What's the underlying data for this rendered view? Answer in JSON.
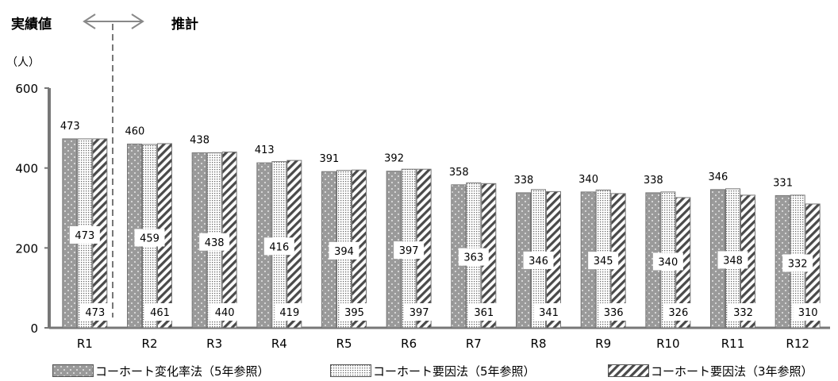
{
  "header": {
    "actual_label": "実績値",
    "forecast_label": "推計"
  },
  "chart_data": {
    "type": "bar",
    "unit_label": "（人）",
    "categories": [
      "R1",
      "R2",
      "R3",
      "R4",
      "R5",
      "R6",
      "R7",
      "R8",
      "R9",
      "R10",
      "R11",
      "R12"
    ],
    "ylim": [
      0,
      600
    ],
    "yticks": [
      0,
      200,
      400,
      600
    ],
    "grid": false,
    "legend_position": "bottom",
    "series": [
      {
        "name": "コーホート変化率法（5年参照）",
        "values": [
          473,
          460,
          438,
          413,
          391,
          392,
          358,
          338,
          340,
          338,
          346,
          331
        ],
        "color": "#9a9a9a",
        "pattern": "dots"
      },
      {
        "name": "コーホート要因法（5年参照）",
        "values": [
          473,
          459,
          438,
          416,
          394,
          397,
          363,
          346,
          345,
          340,
          348,
          332
        ],
        "color": "#ffffff",
        "pattern": "fine-dots"
      },
      {
        "name": "コーホート要因法（3年参照）",
        "values": [
          473,
          461,
          440,
          419,
          395,
          397,
          361,
          341,
          336,
          326,
          332,
          310
        ],
        "color": "#ffffff",
        "pattern": "diagonal-stripes"
      }
    ]
  }
}
